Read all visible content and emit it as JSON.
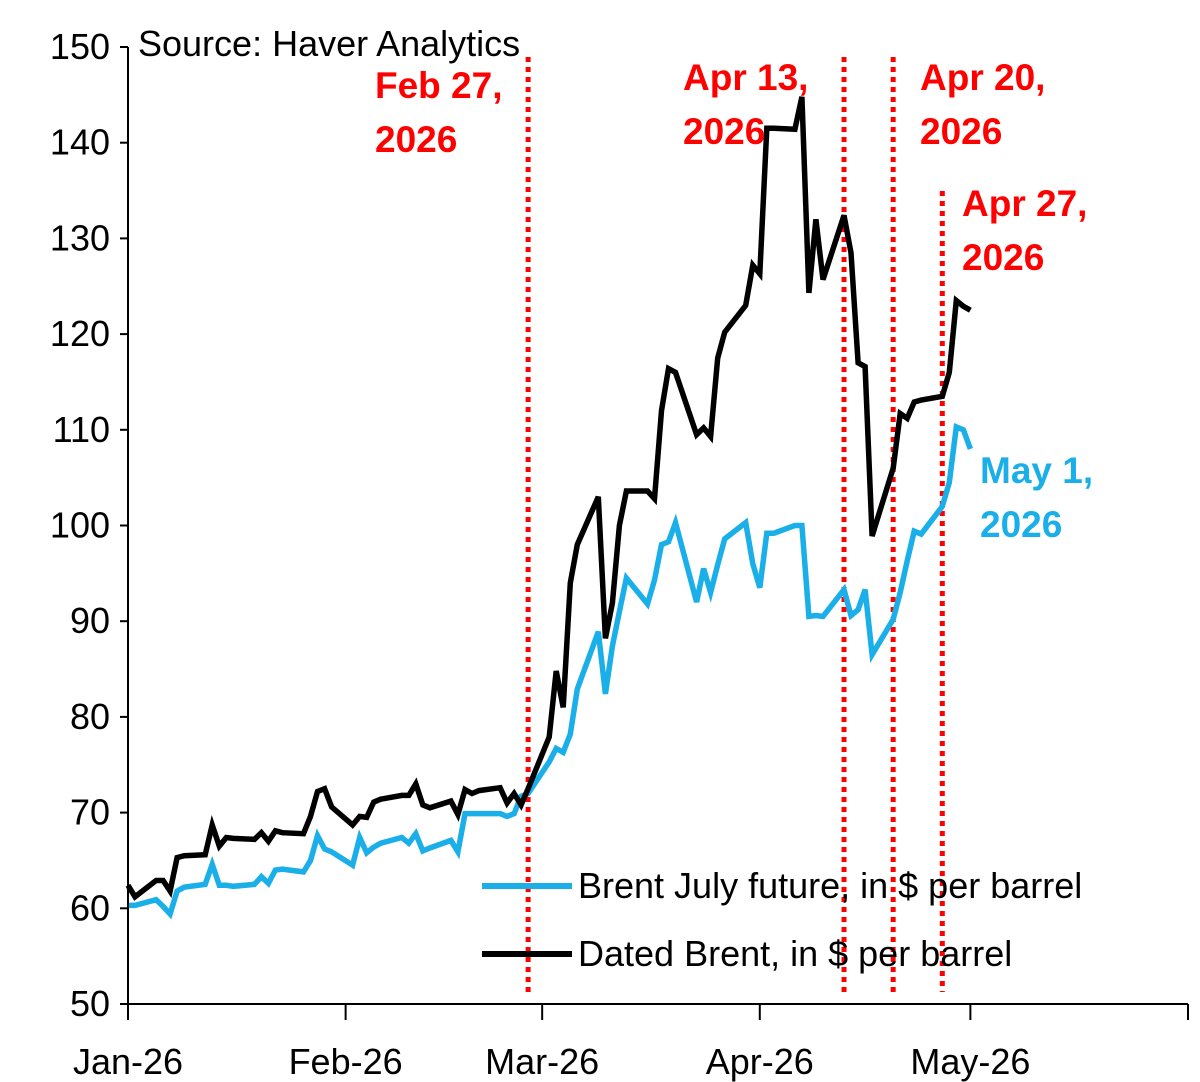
{
  "chart_data": {
    "type": "line",
    "source": "Source: Haver Analytics",
    "ylim": [
      50,
      150
    ],
    "yticks": [
      50,
      60,
      70,
      80,
      90,
      100,
      110,
      120,
      130,
      140,
      150
    ],
    "xlim": [
      "2026-01-01",
      "2026-06-01"
    ],
    "xticks": [
      {
        "date": "2026-01-01",
        "label": "Jan-26"
      },
      {
        "date": "2026-02-01",
        "label": "Feb-26"
      },
      {
        "date": "2026-03-01",
        "label": "Mar-26"
      },
      {
        "date": "2026-04-01",
        "label": "Apr-26"
      },
      {
        "date": "2026-05-01",
        "label": "May-26"
      },
      {
        "date": "2026-06-01",
        "label": ""
      }
    ],
    "grid": false,
    "legend_position": "bottom-right",
    "series": [
      {
        "name": "Brent July future, in $ per barrel",
        "color": "#1AAFE8",
        "points": [
          [
            "2026-01-01",
            60.3
          ],
          [
            "2026-01-02",
            60.3
          ],
          [
            "2026-01-05",
            60.9
          ],
          [
            "2026-01-06",
            60.2
          ],
          [
            "2026-01-07",
            59.4
          ],
          [
            "2026-01-08",
            61.8
          ],
          [
            "2026-01-09",
            62.2
          ],
          [
            "2026-01-12",
            62.5
          ],
          [
            "2026-01-13",
            64.6
          ],
          [
            "2026-01-14",
            62.4
          ],
          [
            "2026-01-15",
            62.4
          ],
          [
            "2026-01-16",
            62.3
          ],
          [
            "2026-01-19",
            62.5
          ],
          [
            "2026-01-20",
            63.3
          ],
          [
            "2026-01-21",
            62.6
          ],
          [
            "2026-01-22",
            64.0
          ],
          [
            "2026-01-23",
            64.1
          ],
          [
            "2026-01-26",
            63.8
          ],
          [
            "2026-01-27",
            65.0
          ],
          [
            "2026-01-28",
            67.6
          ],
          [
            "2026-01-29",
            66.2
          ],
          [
            "2026-01-30",
            65.9
          ],
          [
            "2026-02-02",
            64.5
          ],
          [
            "2026-02-03",
            67.4
          ],
          [
            "2026-02-04",
            65.8
          ],
          [
            "2026-02-05",
            66.4
          ],
          [
            "2026-02-06",
            66.8
          ],
          [
            "2026-02-09",
            67.4
          ],
          [
            "2026-02-10",
            66.8
          ],
          [
            "2026-02-11",
            67.8
          ],
          [
            "2026-02-12",
            66.0
          ],
          [
            "2026-02-13",
            66.3
          ],
          [
            "2026-02-16",
            67.1
          ],
          [
            "2026-02-17",
            65.9
          ],
          [
            "2026-02-18",
            69.9
          ],
          [
            "2026-02-19",
            69.9
          ],
          [
            "2026-02-20",
            69.9
          ],
          [
            "2026-02-23",
            69.9
          ],
          [
            "2026-02-24",
            69.6
          ],
          [
            "2026-02-25",
            69.9
          ],
          [
            "2026-02-26",
            71.7
          ],
          [
            "2026-02-27",
            72.0
          ],
          [
            "2026-03-02",
            75.3
          ],
          [
            "2026-03-03",
            76.7
          ],
          [
            "2026-03-04",
            76.3
          ],
          [
            "2026-03-05",
            78.2
          ],
          [
            "2026-03-06",
            82.9
          ],
          [
            "2026-03-09",
            88.9
          ],
          [
            "2026-03-10",
            82.4
          ],
          [
            "2026-03-11",
            87.4
          ],
          [
            "2026-03-12",
            91.0
          ],
          [
            "2026-03-13",
            94.5
          ],
          [
            "2026-03-16",
            91.8
          ],
          [
            "2026-03-17",
            94.3
          ],
          [
            "2026-03-18",
            98.0
          ],
          [
            "2026-03-19",
            98.3
          ],
          [
            "2026-03-20",
            100.3
          ],
          [
            "2026-03-23",
            92.0
          ],
          [
            "2026-03-24",
            95.5
          ],
          [
            "2026-03-25",
            93.0
          ],
          [
            "2026-03-26",
            95.9
          ],
          [
            "2026-03-27",
            98.6
          ],
          [
            "2026-03-30",
            100.3
          ],
          [
            "2026-03-31",
            96.0
          ],
          [
            "2026-04-01",
            93.5
          ],
          [
            "2026-04-02",
            99.2
          ],
          [
            "2026-04-03",
            99.2
          ],
          [
            "2026-04-06",
            100.0
          ],
          [
            "2026-04-07",
            100.0
          ],
          [
            "2026-04-08",
            90.5
          ],
          [
            "2026-04-09",
            90.6
          ],
          [
            "2026-04-10",
            90.5
          ],
          [
            "2026-04-13",
            93.3
          ],
          [
            "2026-04-14",
            90.6
          ],
          [
            "2026-04-15",
            91.2
          ],
          [
            "2026-04-16",
            93.3
          ],
          [
            "2026-04-17",
            86.5
          ],
          [
            "2026-04-20",
            90.2
          ],
          [
            "2026-04-21",
            93.0
          ],
          [
            "2026-04-22",
            96.3
          ],
          [
            "2026-04-23",
            99.4
          ],
          [
            "2026-04-24",
            99.1
          ],
          [
            "2026-04-27",
            102.0
          ],
          [
            "2026-04-28",
            104.5
          ],
          [
            "2026-04-29",
            110.3
          ],
          [
            "2026-04-30",
            110.0
          ],
          [
            "2026-05-01",
            108.0
          ]
        ]
      },
      {
        "name": "Dated Brent, in $ per barrel",
        "color": "#000000",
        "points": [
          [
            "2026-01-01",
            62.4
          ],
          [
            "2026-01-02",
            61.2
          ],
          [
            "2026-01-05",
            62.9
          ],
          [
            "2026-01-06",
            62.9
          ],
          [
            "2026-01-07",
            61.8
          ],
          [
            "2026-01-08",
            65.3
          ],
          [
            "2026-01-09",
            65.5
          ],
          [
            "2026-01-12",
            65.6
          ],
          [
            "2026-01-13",
            68.7
          ],
          [
            "2026-01-14",
            66.5
          ],
          [
            "2026-01-15",
            67.4
          ],
          [
            "2026-01-16",
            67.3
          ],
          [
            "2026-01-19",
            67.2
          ],
          [
            "2026-01-20",
            67.9
          ],
          [
            "2026-01-21",
            67.0
          ],
          [
            "2026-01-22",
            68.1
          ],
          [
            "2026-01-23",
            67.9
          ],
          [
            "2026-01-26",
            67.8
          ],
          [
            "2026-01-27",
            69.6
          ],
          [
            "2026-01-28",
            72.2
          ],
          [
            "2026-01-29",
            72.5
          ],
          [
            "2026-01-30",
            70.6
          ],
          [
            "2026-02-02",
            68.7
          ],
          [
            "2026-02-03",
            69.6
          ],
          [
            "2026-02-04",
            69.5
          ],
          [
            "2026-02-05",
            71.1
          ],
          [
            "2026-02-06",
            71.4
          ],
          [
            "2026-02-09",
            71.8
          ],
          [
            "2026-02-10",
            71.8
          ],
          [
            "2026-02-11",
            73.0
          ],
          [
            "2026-02-12",
            70.8
          ],
          [
            "2026-02-13",
            70.5
          ],
          [
            "2026-02-16",
            71.2
          ],
          [
            "2026-02-17",
            69.8
          ],
          [
            "2026-02-18",
            72.4
          ],
          [
            "2026-02-19",
            72.0
          ],
          [
            "2026-02-20",
            72.3
          ],
          [
            "2026-02-23",
            72.6
          ],
          [
            "2026-02-24",
            71.0
          ],
          [
            "2026-02-25",
            72.0
          ],
          [
            "2026-02-26",
            70.8
          ],
          [
            "2026-02-27",
            72.5
          ],
          [
            "2026-03-02",
            77.9
          ],
          [
            "2026-03-03",
            84.8
          ],
          [
            "2026-03-04",
            81.0
          ],
          [
            "2026-03-05",
            94.0
          ],
          [
            "2026-03-06",
            98.0
          ],
          [
            "2026-03-09",
            103.0
          ],
          [
            "2026-03-10",
            88.2
          ],
          [
            "2026-03-11",
            91.9
          ],
          [
            "2026-03-12",
            100.0
          ],
          [
            "2026-03-13",
            103.6
          ],
          [
            "2026-03-16",
            103.6
          ],
          [
            "2026-03-17",
            102.8
          ],
          [
            "2026-03-18",
            112.0
          ],
          [
            "2026-03-19",
            116.4
          ],
          [
            "2026-03-20",
            116.0
          ],
          [
            "2026-03-23",
            109.5
          ],
          [
            "2026-03-24",
            110.2
          ],
          [
            "2026-03-25",
            109.3
          ],
          [
            "2026-03-26",
            117.5
          ],
          [
            "2026-03-27",
            120.2
          ],
          [
            "2026-03-30",
            123.0
          ],
          [
            "2026-03-31",
            127.2
          ],
          [
            "2026-04-01",
            126.3
          ],
          [
            "2026-04-02",
            141.5
          ],
          [
            "2026-04-03",
            141.5
          ],
          [
            "2026-04-06",
            141.4
          ],
          [
            "2026-04-07",
            144.8
          ],
          [
            "2026-04-08",
            124.3
          ],
          [
            "2026-04-09",
            132.0
          ],
          [
            "2026-04-10",
            125.7
          ],
          [
            "2026-04-13",
            132.4
          ],
          [
            "2026-04-14",
            128.5
          ],
          [
            "2026-04-15",
            117.0
          ],
          [
            "2026-04-16",
            116.6
          ],
          [
            "2026-04-17",
            98.9
          ],
          [
            "2026-04-20",
            106.0
          ],
          [
            "2026-04-21",
            111.7
          ],
          [
            "2026-04-22",
            111.2
          ],
          [
            "2026-04-23",
            112.9
          ],
          [
            "2026-04-24",
            113.1
          ],
          [
            "2026-04-27",
            113.5
          ],
          [
            "2026-04-28",
            116.0
          ],
          [
            "2026-04-29",
            123.5
          ],
          [
            "2026-04-30",
            122.9
          ],
          [
            "2026-05-01",
            122.5
          ]
        ]
      }
    ],
    "annotations": [
      {
        "lines": [
          "Feb 27,",
          "2026"
        ],
        "color": "#FF0000",
        "anchor_date": "2026-02-27"
      },
      {
        "lines": [
          "Apr 13,",
          "2026"
        ],
        "color": "#FF0000",
        "anchor_date": "2026-04-13"
      },
      {
        "lines": [
          "Apr 20,",
          "2026"
        ],
        "color": "#FF0000",
        "anchor_date": "2026-04-20"
      },
      {
        "lines": [
          "Apr 27,",
          "2026"
        ],
        "color": "#FF0000",
        "anchor_date": "2026-04-27"
      },
      {
        "lines": [
          "May 1,",
          "2026"
        ],
        "color": "#1AAFE8",
        "anchor_date": "2026-05-01"
      }
    ],
    "vlines": [
      {
        "date": "2026-02-27",
        "color": "#FF0000",
        "style": "dotted",
        "top": 150
      },
      {
        "date": "2026-04-13",
        "color": "#FF0000",
        "style": "dotted",
        "top": 150
      },
      {
        "date": "2026-04-20",
        "color": "#FF0000",
        "style": "dotted",
        "top": 150
      },
      {
        "date": "2026-04-27",
        "color": "#FF0000",
        "style": "dotted",
        "top": 136
      }
    ]
  }
}
